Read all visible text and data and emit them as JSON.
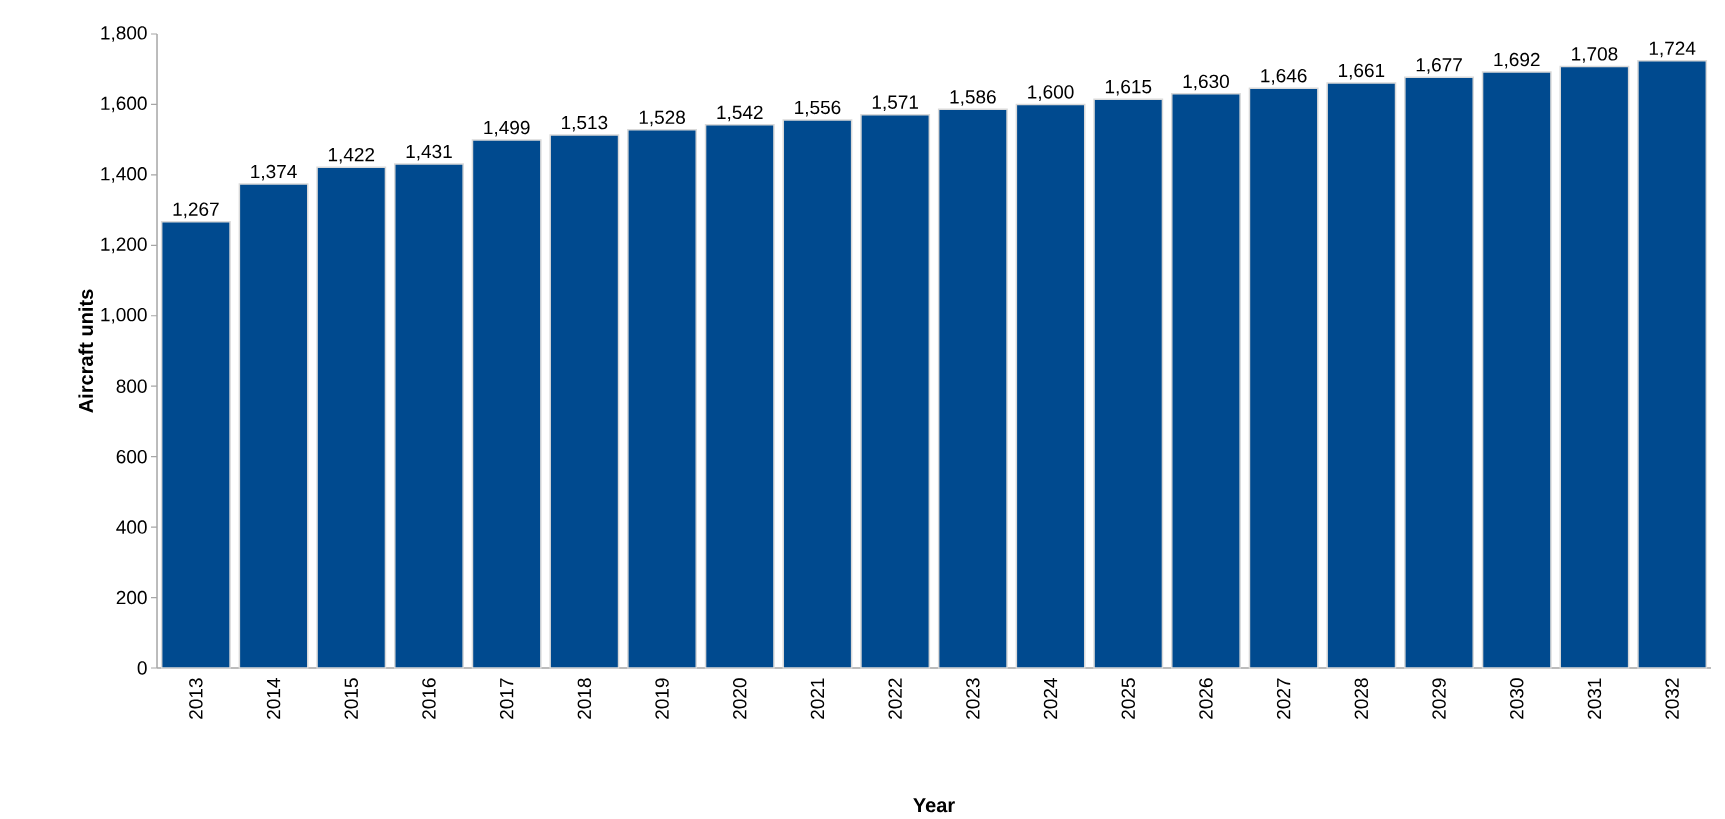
{
  "chart_data": {
    "type": "bar",
    "xlabel": "Year",
    "ylabel": "Aircraft units",
    "categories": [
      "2013",
      "2014",
      "2015",
      "2016",
      "2017",
      "2018",
      "2019",
      "2020",
      "2021",
      "2022",
      "2023",
      "2024",
      "2025",
      "2026",
      "2027",
      "2028",
      "2029",
      "2030",
      "2031",
      "2032"
    ],
    "values": [
      1267,
      1374,
      1422,
      1431,
      1499,
      1513,
      1528,
      1542,
      1556,
      1571,
      1586,
      1600,
      1615,
      1630,
      1646,
      1661,
      1677,
      1692,
      1708,
      1724
    ],
    "value_labels": [
      "1,267",
      "1,374",
      "1,422",
      "1,431",
      "1,499",
      "1,513",
      "1,528",
      "1,542",
      "1,556",
      "1,571",
      "1,586",
      "1,600",
      "1,615",
      "1,630",
      "1,646",
      "1,661",
      "1,677",
      "1,692",
      "1,708",
      "1,724"
    ],
    "color": "#004a8f",
    "ylim": [
      0,
      1800
    ],
    "yticks": [
      0,
      200,
      400,
      600,
      800,
      {
        "value": 1000,
        "label": "1,000"
      },
      {
        "value": 1200,
        "label": "1,200"
      },
      {
        "value": 1400,
        "label": "1,400"
      },
      {
        "value": 1600,
        "label": "1,600"
      },
      {
        "value": 1800,
        "label": "1,800"
      }
    ],
    "grid": false
  }
}
